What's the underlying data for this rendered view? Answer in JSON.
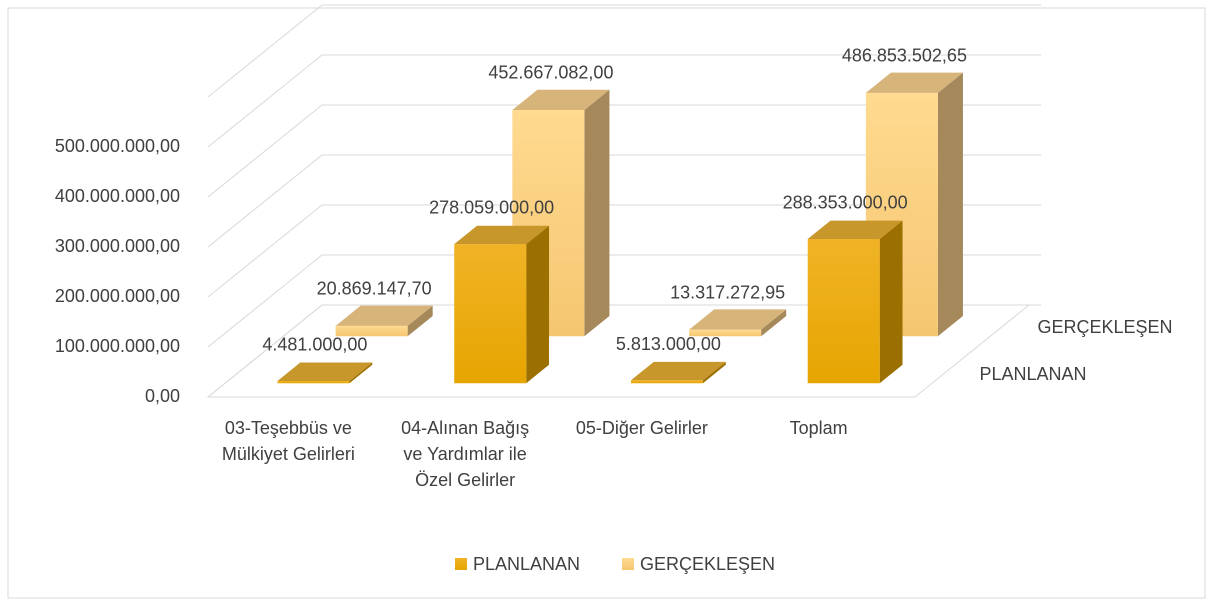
{
  "chart_data": {
    "type": "bar3d",
    "categories": [
      "03-Teşebbüs ve Mülkiyet Gelirleri",
      "04-Alınan Bağış ve Yardımlar ile Özel Gelirler",
      "05-Diğer Gelirler",
      "Toplam"
    ],
    "series": [
      {
        "name": "PLANLANAN",
        "color": "#edad0b",
        "values": [
          4481000,
          278059000,
          5813000,
          288353000
        ],
        "value_labels": [
          "4.481.000,00",
          "278.059.000,00",
          "5.813.000,00",
          "288.353.000,00"
        ]
      },
      {
        "name": "GERÇEKLEŞEN",
        "color": "#fdd58a",
        "values": [
          20869147.7,
          452667082.0,
          13317272.95,
          486853502.65
        ],
        "value_labels": [
          "20.869.147,70",
          "452.667.082,00",
          "13.317.272,95",
          "486.853.502,65"
        ]
      }
    ],
    "ylim": [
      0,
      600000000
    ],
    "yticks": [
      {
        "value": 0,
        "label": "0,00"
      },
      {
        "value": 100000000,
        "label": "100.000.000,00"
      },
      {
        "value": 200000000,
        "label": "200.000.000,00"
      },
      {
        "value": 300000000,
        "label": "300.000.000,00"
      },
      {
        "value": 400000000,
        "label": "400.000.000,00"
      },
      {
        "value": 500000000,
        "label": "500.000.000,00"
      }
    ],
    "grid": true,
    "legend": "bottom"
  }
}
